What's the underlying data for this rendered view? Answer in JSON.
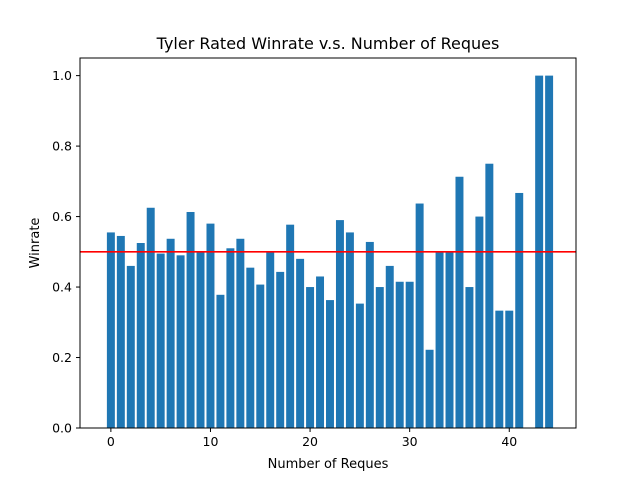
{
  "chart_data": {
    "type": "bar",
    "title": "Tyler Rated Winrate v.s. Number of Reques",
    "xlabel": "Number of Reques",
    "ylabel": "Winrate",
    "x": [
      0,
      1,
      2,
      3,
      4,
      5,
      6,
      7,
      8,
      9,
      10,
      11,
      12,
      13,
      14,
      15,
      16,
      17,
      18,
      19,
      20,
      21,
      22,
      23,
      24,
      25,
      26,
      27,
      28,
      29,
      30,
      31,
      32,
      33,
      34,
      35,
      36,
      37,
      38,
      39,
      40,
      41,
      42,
      43,
      44
    ],
    "values": [
      0.555,
      0.545,
      0.46,
      0.525,
      0.625,
      0.495,
      0.537,
      0.49,
      0.613,
      0.5,
      0.58,
      0.378,
      0.51,
      0.537,
      0.455,
      0.407,
      0.5,
      0.443,
      0.577,
      0.48,
      0.4,
      0.43,
      0.363,
      0.59,
      0.555,
      0.353,
      0.528,
      0.4,
      0.46,
      0.415,
      0.415,
      0.637,
      0.222,
      0.5,
      0.5,
      0.713,
      0.4,
      0.6,
      0.75,
      0.333,
      0.333,
      0.667,
      0.0,
      1.0,
      1.0
    ],
    "xlim": [
      -3.1,
      46.7
    ],
    "ylim": [
      0,
      1.05
    ],
    "xticks": [
      "0",
      "10",
      "20",
      "30",
      "40"
    ],
    "yticks": [
      "0.0",
      "0.2",
      "0.4",
      "0.6",
      "0.8",
      "1.0"
    ],
    "reference_line": {
      "y": 0.5,
      "color": "#ff0000"
    },
    "bar_color": "#1f77b4",
    "grid": false,
    "legend": "none"
  }
}
